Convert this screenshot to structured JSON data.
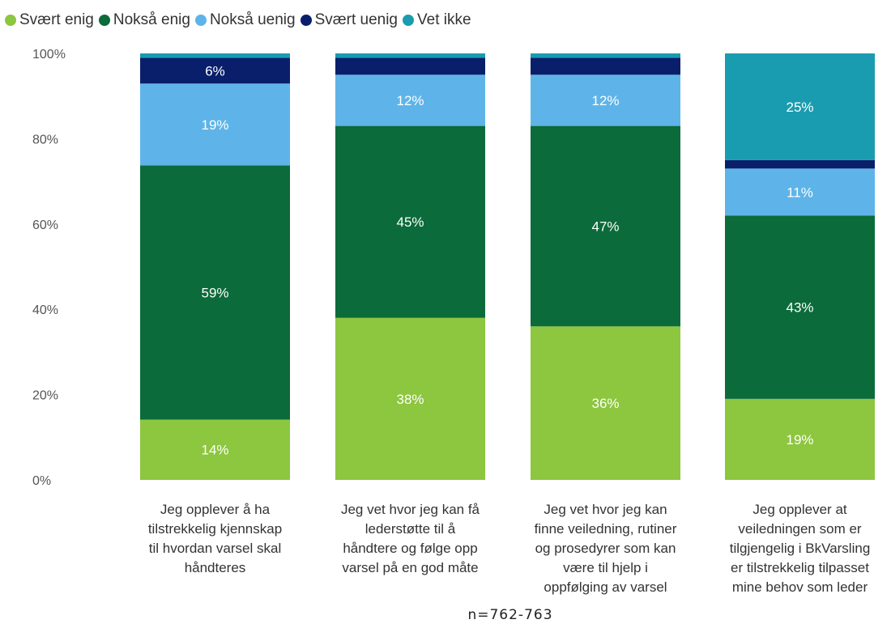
{
  "chart_data": {
    "type": "bar",
    "stacked": true,
    "categories": [
      "Jeg opplever å ha tilstrekkelig kjennskap til hvordan varsel skal håndteres",
      "Jeg vet hvor jeg kan få lederstøtte til å håndtere og følge opp varsel på en god måte",
      "Jeg vet hvor jeg kan finne veiledning, rutiner og prosedyrer som kan være til hjelp i oppfølging av varsel",
      "Jeg opplever at veiledningen som er tilgjengelig i BkVarsling er tilstrekkelig tilpasset mine behov som leder"
    ],
    "category_lines": [
      [
        "Jeg opplever å ha",
        "tilstrekkelig kjennskap",
        "til hvordan varsel skal",
        "håndteres"
      ],
      [
        "Jeg vet hvor jeg kan få",
        "lederstøtte til å",
        "håndtere og følge opp",
        "varsel på en god måte"
      ],
      [
        "Jeg vet hvor jeg kan",
        "finne veiledning, rutiner",
        "og prosedyrer som kan",
        "være til hjelp i",
        "oppfølging av varsel"
      ],
      [
        "Jeg opplever at",
        "veiledningen som er",
        "tilgjengelig i BkVarsling",
        "er tilstrekkelig tilpasset",
        "mine behov som leder"
      ]
    ],
    "series": [
      {
        "name": "Svært enig",
        "color": "#8dc63f",
        "values": [
          14,
          38,
          36,
          19
        ],
        "labels": [
          "14%",
          "38%",
          "36%",
          "19%"
        ]
      },
      {
        "name": "Nokså enig",
        "color": "#0b6b3a",
        "values": [
          59,
          45,
          47,
          43
        ],
        "labels": [
          "59%",
          "45%",
          "47%",
          "43%"
        ]
      },
      {
        "name": "Nokså uenig",
        "color": "#5eb4e8",
        "values": [
          19,
          12,
          12,
          11
        ],
        "labels": [
          "19%",
          "12%",
          "12%",
          "11%"
        ]
      },
      {
        "name": "Svært uenig",
        "color": "#0a1f6b",
        "values": [
          6,
          4,
          4,
          2
        ],
        "labels": [
          "6%",
          "",
          "",
          ""
        ]
      },
      {
        "name": "Vet ikke",
        "color": "#1a9cb0",
        "values": [
          1,
          1,
          1,
          25
        ],
        "labels": [
          "",
          "",
          "",
          "25%"
        ]
      }
    ],
    "y_ticks": [
      "0%",
      "20%",
      "40%",
      "60%",
      "80%",
      "100%"
    ],
    "ylim": [
      0,
      100
    ],
    "legend_position": "top-left",
    "grid": false,
    "note": "n=762-763"
  }
}
